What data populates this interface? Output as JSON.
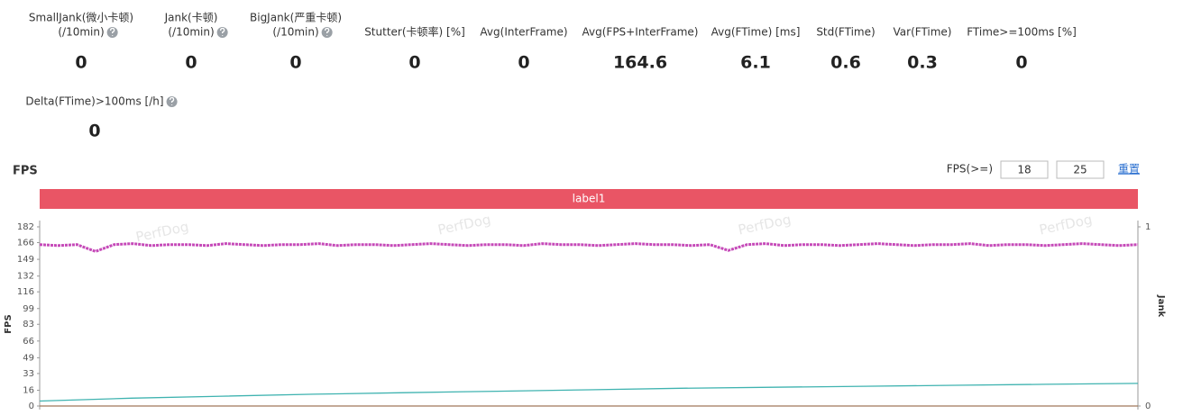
{
  "metrics": [
    {
      "label": [
        "SmallJank(微小卡顿)",
        "(/10min)"
      ],
      "value": 0,
      "help": true
    },
    {
      "label": [
        "Jank(卡顿)",
        "(/10min)"
      ],
      "value": 0,
      "help": true
    },
    {
      "label": [
        "BigJank(严重卡顿)",
        "(/10min)"
      ],
      "value": 0,
      "help": true
    },
    {
      "label": [
        "Stutter(卡顿率) [%]"
      ],
      "value": 0,
      "help": false
    },
    {
      "label": [
        "Avg(InterFrame)"
      ],
      "value": 0,
      "help": false
    },
    {
      "label": [
        "Avg(FPS+InterFrame)"
      ],
      "value": 164.6,
      "help": false
    },
    {
      "label": [
        "Avg(FTime) [ms]"
      ],
      "value": 6.1,
      "help": false
    },
    {
      "label": [
        "Std(FTime)"
      ],
      "value": 0.6,
      "help": false
    },
    {
      "label": [
        "Var(FTime)"
      ],
      "value": 0.3,
      "help": false
    },
    {
      "label": [
        "FTime>=100ms [%]"
      ],
      "value": 0,
      "help": false
    },
    {
      "label": [
        "Delta(FTime)>100ms [/h]"
      ],
      "value": 0,
      "help": true
    }
  ],
  "controls": {
    "fps_filter_label": "FPS(>=)",
    "threshold_1": 18,
    "threshold_2": 25,
    "reset": "重置"
  },
  "chart_data": {
    "type": "line",
    "title": "FPS",
    "band_label": "label1",
    "watermark": "PerfDog",
    "ylabel": "FPS",
    "y2label": "Jank",
    "ylim": [
      0,
      182
    ],
    "yticks": [
      0,
      16,
      33,
      49,
      66,
      83,
      99,
      116,
      132,
      149,
      166,
      182
    ],
    "y2lim": [
      0,
      1
    ],
    "y2ticks": [
      0,
      1
    ],
    "grid": false,
    "series": [
      {
        "color": "#c549b8",
        "values": [
          164,
          163,
          164,
          157,
          164,
          165,
          163,
          164,
          164,
          163,
          165,
          164,
          163,
          164,
          164,
          165,
          163,
          164,
          164,
          163,
          164,
          165,
          164,
          163,
          164,
          164,
          163,
          165,
          164,
          164,
          163,
          164,
          165,
          164,
          164,
          163,
          164,
          158,
          164,
          165,
          163,
          164,
          164,
          163,
          164,
          165,
          164,
          163,
          164,
          164,
          165,
          163,
          164,
          164,
          163,
          164,
          165,
          164,
          163,
          164
        ]
      },
      {
        "color": "#3fb3b0",
        "values": [
          5,
          8,
          10,
          12,
          13.5,
          15,
          16.5,
          18,
          19,
          20,
          21,
          22,
          23
        ]
      },
      {
        "color": "#a0785a",
        "axis": "y2",
        "values": [
          0,
          0,
          0,
          0,
          0,
          0,
          0,
          0,
          0,
          0
        ]
      }
    ]
  }
}
